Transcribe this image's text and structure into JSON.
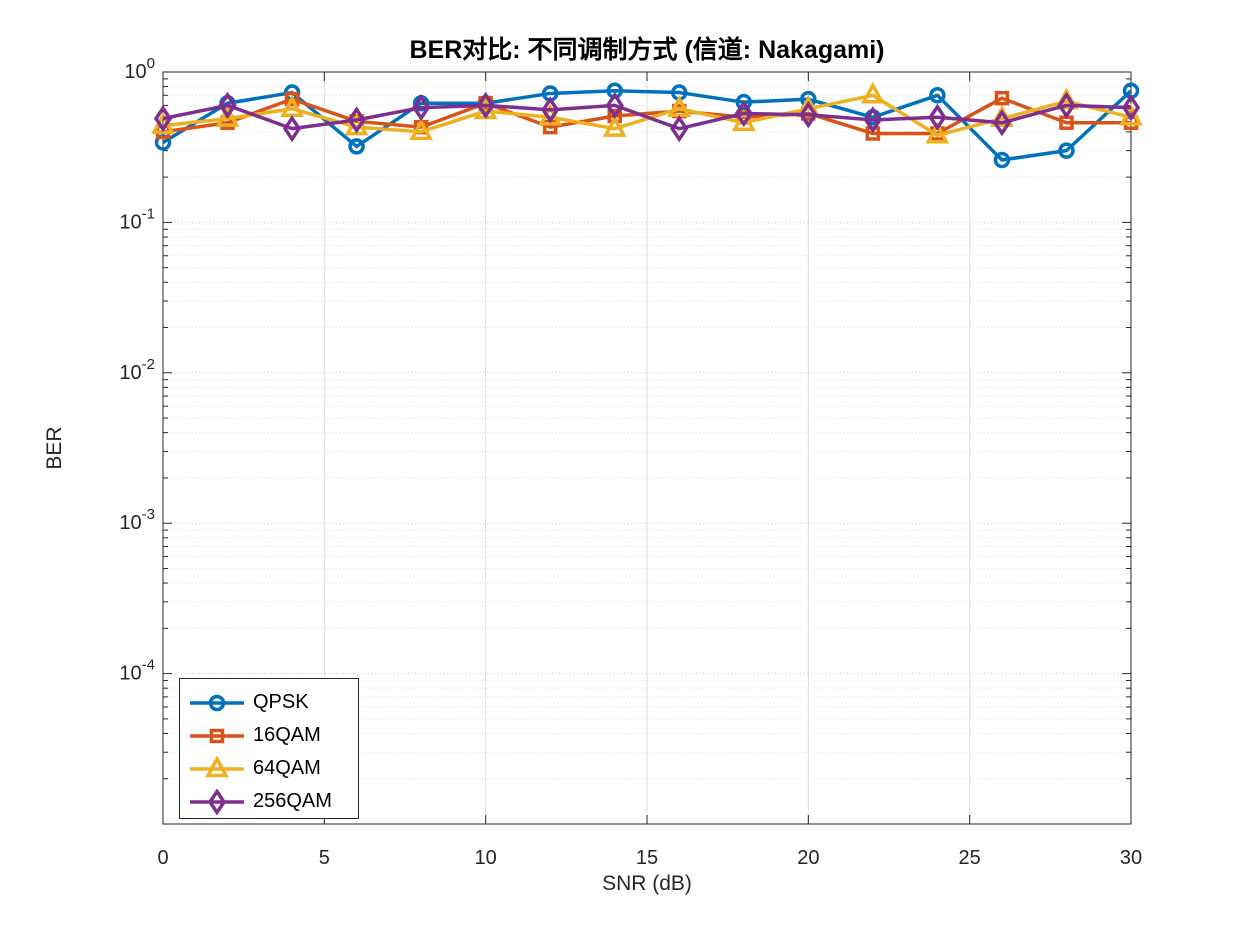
{
  "chart_data": {
    "type": "line",
    "scale": "semilogy",
    "title": "BER对比: 不同调制方式 (信道: Nakagami)",
    "xlabel": "SNR (dB)",
    "ylabel": "BER",
    "x": [
      0,
      2,
      4,
      6,
      8,
      10,
      12,
      14,
      16,
      18,
      20,
      22,
      24,
      26,
      28,
      30
    ],
    "series": [
      {
        "name": "QPSK",
        "color": "#0072BD",
        "marker": "circle",
        "values": [
          0.34,
          0.62,
          0.73,
          0.32,
          0.62,
          0.62,
          0.72,
          0.75,
          0.73,
          0.63,
          0.66,
          0.5,
          0.7,
          0.26,
          0.3,
          0.75
        ]
      },
      {
        "name": "16QAM",
        "color": "#D95319",
        "marker": "square",
        "values": [
          0.4,
          0.46,
          0.66,
          0.47,
          0.43,
          0.62,
          0.43,
          0.51,
          0.55,
          0.5,
          0.53,
          0.39,
          0.39,
          0.67,
          0.46,
          0.46
        ]
      },
      {
        "name": "64QAM",
        "color": "#EDB120",
        "marker": "triangle",
        "values": [
          0.44,
          0.49,
          0.57,
          0.43,
          0.4,
          0.55,
          0.5,
          0.42,
          0.57,
          0.46,
          0.57,
          0.7,
          0.38,
          0.49,
          0.64,
          0.5
        ]
      },
      {
        "name": "256QAM",
        "color": "#7E2F8E",
        "marker": "diamond",
        "values": [
          0.49,
          0.6,
          0.42,
          0.48,
          0.58,
          0.6,
          0.56,
          0.6,
          0.42,
          0.53,
          0.52,
          0.48,
          0.5,
          0.46,
          0.6,
          0.58
        ]
      }
    ],
    "xlim": [
      0,
      30
    ],
    "ylim": [
      1e-05,
      1
    ],
    "x_ticks": [
      0,
      5,
      10,
      15,
      20,
      25,
      30
    ],
    "y_tick_exponents": [
      0,
      -1,
      -2,
      -3,
      -4
    ],
    "grid": true,
    "minor_grid": true,
    "legend_position": "bottom-left"
  },
  "palette": {
    "axis": "#262626",
    "tick_text": "#262626",
    "title_text": "#000000",
    "grid_major": "#c9c9c9",
    "grid_minor": "#e2e2e2",
    "grid_vertical": "#dcdcdc",
    "background": "#ffffff"
  }
}
